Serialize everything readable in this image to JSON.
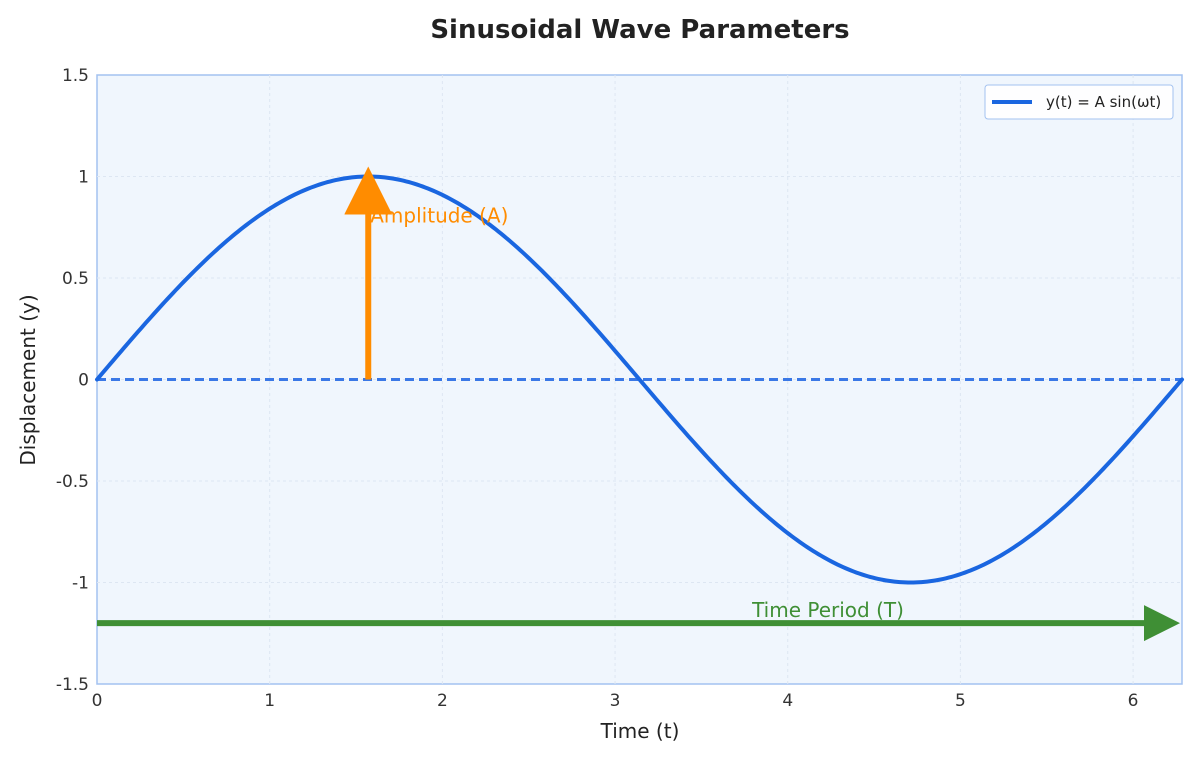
{
  "chart_data": {
    "type": "line",
    "title": "Sinusoidal Wave Parameters",
    "xlabel": "Time (t)",
    "ylabel": "Displacement (y)",
    "xlim": [
      0,
      6.2832
    ],
    "ylim": [
      -1.5,
      1.5
    ],
    "x_ticks": [
      0,
      1,
      2,
      3,
      4,
      5,
      6
    ],
    "y_ticks": [
      1.5,
      1,
      0.5,
      0,
      -0.5,
      -1,
      -1.5
    ],
    "x_tick_labels": [
      "0",
      "1",
      "2",
      "3",
      "4",
      "5",
      "6"
    ],
    "y_tick_labels": [
      "1.5",
      "1",
      "0.5",
      "0",
      "-0.5",
      "-1",
      "-1.5"
    ],
    "grid": true,
    "legend_position": "top-right",
    "series": [
      {
        "name": "y(t) = A sin(ωt)",
        "function": "sin",
        "amplitude": 1,
        "angular_frequency": 1,
        "x_range": [
          0,
          6.2832
        ],
        "color": "#1a66e0"
      }
    ],
    "reference_line": {
      "y": 0,
      "style": "dashed",
      "color": "#3a78e6"
    },
    "annotations": [
      {
        "label": "Amplitude (A)",
        "color": "#ff8c00",
        "from": [
          1.5708,
          0
        ],
        "to": [
          1.5708,
          1
        ]
      },
      {
        "label": "Time Period (T)",
        "color": "#3f8f35",
        "from": [
          0,
          -1.2
        ],
        "to": [
          6.2832,
          -1.2
        ]
      }
    ],
    "colors": {
      "plot_background": "#f0f6fd",
      "axes_border": "#a3c2f0",
      "grid": "#dde6f2"
    }
  }
}
